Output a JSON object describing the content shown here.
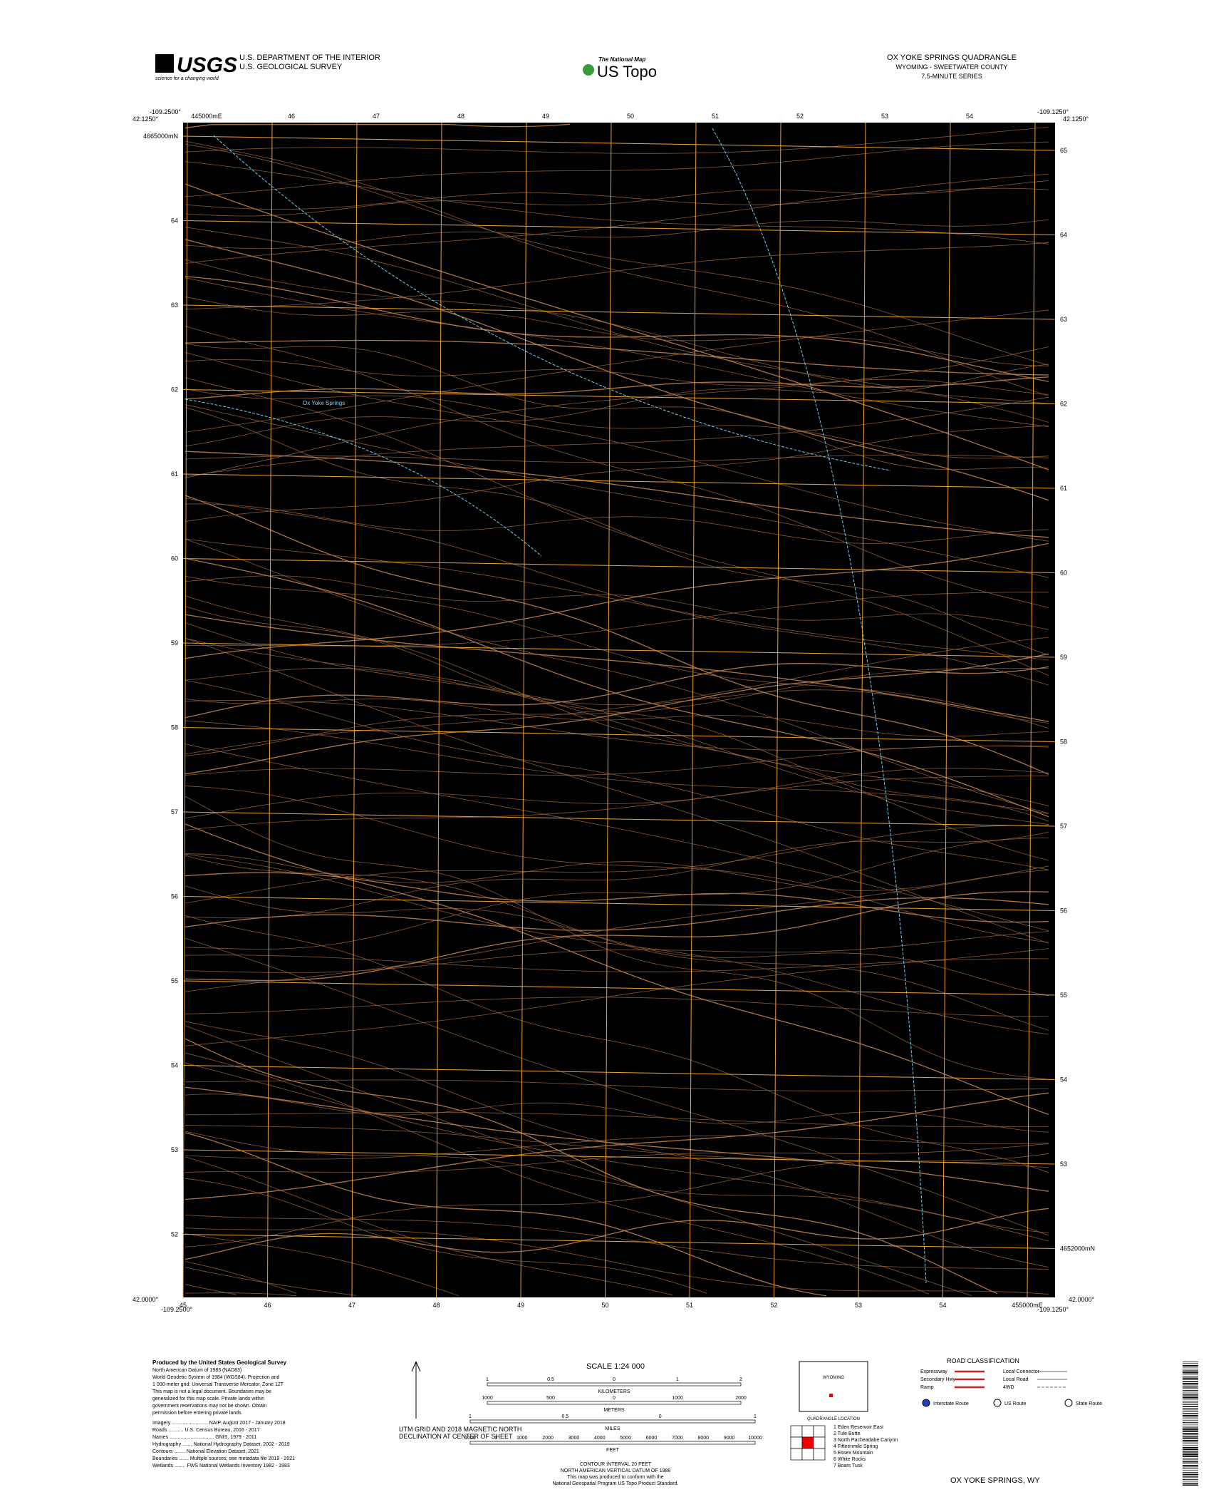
{
  "header": {
    "logo": "USGS",
    "logo_tagline": "science for a changing world",
    "agency": "U.S. DEPARTMENT OF THE INTERIOR",
    "survey": "U.S. GEOLOGICAL SURVEY",
    "product_top": "The National Map",
    "product": "US Topo",
    "title": "OX YOKE SPRINGS QUADRANGLE",
    "state_county": "WYOMING - SWEETWATER COUNTY",
    "series": "7.5-MINUTE SERIES"
  },
  "corners": {
    "top_left_lon": "-109.2500°",
    "top_left_lat": "42.1250°",
    "top_right_lon": "-109.1250°",
    "top_right_lat": "42.1250°",
    "bottom_left_lat": "42.0000°",
    "bottom_left_lon": "-109.2500°",
    "bottom_right_lon": "-109.1250°",
    "bottom_right_lat": "42.0000°"
  },
  "grid": {
    "top": [
      "445000mE",
      "46",
      "47",
      "48",
      "49",
      "50",
      "51",
      "52",
      "53",
      "54"
    ],
    "bottom": [
      "45",
      "46",
      "47",
      "48",
      "49",
      "50",
      "51",
      "52",
      "53",
      "54",
      "455000mE"
    ],
    "left": [
      "4665000mN",
      "64",
      "63",
      "62",
      "61",
      "60",
      "59",
      "58",
      "57",
      "56",
      "55",
      "54",
      "53",
      "52"
    ],
    "right": [
      "65",
      "64",
      "63",
      "62",
      "61",
      "60",
      "59",
      "58",
      "57",
      "56",
      "55",
      "54",
      "53",
      "4652000mN"
    ]
  },
  "places": [
    "Ox Yoke Springs"
  ],
  "footer": {
    "produced": [
      "Produced by the United States Geological Survey",
      "North American Datum of 1983 (NAD83)",
      "World Geodetic System of 1984 (WGS84). Projection and",
      "1 000-meter grid: Universal Transverse Mercator, Zone 12T",
      "This map is not a legal document. Boundaries may be",
      "generalized for this map scale. Private lands within",
      "government reservations may not be shown. Obtain",
      "permission before entering private lands."
    ],
    "sources": [
      "Imagery .......................... NAIP, August 2017 - January 2018",
      "Roads ........... U.S. Census Bureau, 2016 - 2017",
      "Names ................................ GNIS, 1979 - 2011",
      "Hydrography ....... National Hydrography Dataset, 2002 - 2019",
      "Contours ........ National Elevation Dataset, 2021",
      "Boundaries ....... Multiple sources; see metadata file 2019 - 2021",
      "Wetlands ........ FWS National Wetlands Inventory 1982 - 1983"
    ],
    "declination": [
      "UTM GRID AND 2018 MAGNETIC NORTH",
      "DECLINATION AT CENTER OF SHEET"
    ],
    "scale": "SCALE 1:24 000",
    "km_label": "KILOMETERS",
    "km": [
      "1",
      "0.5",
      "0",
      "1",
      "2"
    ],
    "m_label": "METERS",
    "m": [
      "1000",
      "500",
      "0",
      "1000",
      "2000"
    ],
    "mi_label": "MILES",
    "mi": [
      "1",
      "0.5",
      "0",
      "1"
    ],
    "ft_label": "FEET",
    "ft": [
      "1000",
      "0",
      "1000",
      "2000",
      "3000",
      "4000",
      "5000",
      "6000",
      "7000",
      "8000",
      "9000",
      "10000"
    ],
    "contour": [
      "CONTOUR INTERVAL 20 FEET",
      "NORTH AMERICAN VERTICAL DATUM OF 1988",
      "This map was produced to conform with the",
      "National Geospatial Program US Topo Product Standard."
    ],
    "location_state": "WYOMING",
    "location_caption": "QUADRANGLE LOCATION",
    "road_title": "ROAD CLASSIFICATION",
    "roads": [
      "Expressway",
      "Secondary Hwy",
      "Ramp",
      "Local Connector",
      "Local Road",
      "4WD"
    ],
    "routes": [
      "Interstate Route",
      "US Route",
      "State Route"
    ],
    "adjoining": [
      "1 Eden Reservoir East",
      "2 Tule Butte",
      "3 North Pacheadabe Canyon",
      "4 Fifteenmile Spring",
      "5 Essex Mountain",
      "6 White Rocks",
      "7 Boars Tusk"
    ],
    "sheet_name": "OX YOKE SPRINGS, WY"
  }
}
